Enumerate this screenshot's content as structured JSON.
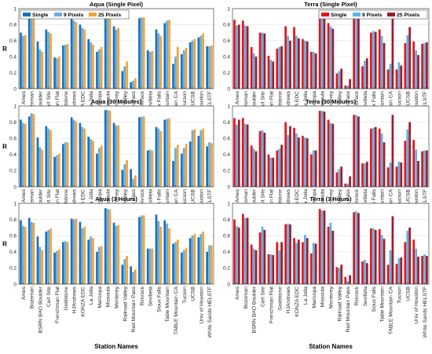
{
  "chart_data": [
    {
      "type": "bar",
      "title": "Aqua (Single Pixel)",
      "ylabel": "R",
      "xlabel": "",
      "ylim": [
        0,
        1
      ],
      "yticks": [
        0,
        0.2,
        0.4,
        0.6,
        0.8,
        1
      ],
      "grid": true,
      "legend": "top-left",
      "categories": [
        "Ames",
        "Bozeman",
        "BSRN BAO Boulder",
        "Cart Site",
        "Frenchman Flat",
        "Goldstone",
        "HJAndrews",
        "KONZA EDC",
        "La Jolla",
        "Maricopa",
        "Missoula",
        "Monterey",
        "Railroad Valley",
        "Red Mountain Pass",
        "Rimrock",
        "Sevilleta",
        "Sioux Falls",
        "Table Mountain",
        "TABLE Mountain CA",
        "Tucson",
        "UCSB",
        "Univ of Houston",
        "White Sands HELSTF"
      ],
      "series": [
        {
          "name": "Single",
          "color": "#1f6fba",
          "values": [
            0.7,
            0.91,
            0.59,
            0.74,
            0.39,
            0.54,
            0.9,
            0.8,
            0.62,
            0.46,
            0.94,
            0.78,
            0.22,
            0.08,
            0.88,
            0.48,
            0.74,
            0.82,
            0.31,
            0.43,
            0.58,
            0.64,
            0.53
          ]
        },
        {
          "name": "9 Pixels",
          "color": "#6baed6",
          "values": [
            0.66,
            0.88,
            0.49,
            0.71,
            0.38,
            0.55,
            0.85,
            0.76,
            0.58,
            0.49,
            0.94,
            0.74,
            0.28,
            0.1,
            0.89,
            0.46,
            0.69,
            0.85,
            0.4,
            0.48,
            0.6,
            0.66,
            0.53
          ]
        },
        {
          "name": "25 Pixels",
          "color": "#f2a33a",
          "values": [
            0.67,
            0.89,
            0.46,
            0.69,
            0.4,
            0.56,
            0.83,
            0.74,
            0.55,
            0.52,
            0.94,
            0.76,
            0.34,
            0.13,
            0.89,
            0.47,
            0.66,
            0.86,
            0.52,
            0.51,
            0.62,
            0.69,
            0.54
          ]
        }
      ]
    },
    {
      "type": "bar",
      "title": "Terra (Single Pixel)",
      "ylabel": "",
      "xlabel": "",
      "ylim": [
        0,
        1
      ],
      "yticks": [
        0,
        0.2,
        0.4,
        0.6,
        0.8,
        1
      ],
      "grid": true,
      "legend": "top-right",
      "categories": [
        "Ames",
        "Bozeman",
        "BSRN BAO Boulder",
        "Cart Site",
        "Frenchman Flat",
        "Goldstone",
        "HJAndrews",
        "KONZA EDC",
        "La Jolla",
        "Maricopa",
        "Missoula",
        "Monterey",
        "Railroad Valley",
        "Red Mountain Pass",
        "Rimrock",
        "Sevilleta",
        "Sioux Falls",
        "Table Mountain",
        "TABLE Mountain CA",
        "Tucson",
        "UCSB",
        "Univ of Houston",
        "White Sands HELSTF"
      ],
      "series": [
        {
          "name": "Single",
          "color": "#e8151b",
          "values": [
            0.86,
            0.85,
            0.52,
            0.7,
            0.41,
            0.5,
            0.78,
            0.77,
            0.62,
            0.46,
            0.93,
            0.82,
            0.19,
            0.04,
            0.9,
            0.28,
            0.7,
            0.74,
            0.24,
            0.24,
            0.57,
            0.59,
            0.56
          ]
        },
        {
          "name": "9 Pixels",
          "color": "#5ab4e5",
          "values": [
            0.79,
            0.79,
            0.44,
            0.7,
            0.36,
            0.52,
            0.66,
            0.66,
            0.6,
            0.46,
            0.94,
            0.78,
            0.22,
            0.04,
            0.9,
            0.35,
            0.72,
            0.66,
            0.31,
            0.33,
            0.67,
            0.48,
            0.57
          ]
        },
        {
          "name": "25 Pixels",
          "color": "#a31a2a",
          "values": [
            0.8,
            0.78,
            0.4,
            0.69,
            0.34,
            0.53,
            0.6,
            0.63,
            0.59,
            0.44,
            0.93,
            0.75,
            0.25,
            0.12,
            0.89,
            0.38,
            0.71,
            0.57,
            0.9,
            0.29,
            0.77,
            0.42,
            0.58
          ]
        }
      ]
    },
    {
      "type": "bar",
      "title": "Aqua (30 Minutes)",
      "ylabel": "R",
      "xlabel": "",
      "ylim": [
        0,
        1
      ],
      "yticks": [
        0,
        0.2,
        0.4,
        0.6,
        0.8,
        1
      ],
      "grid": true,
      "categories": [
        "Ames",
        "Bozeman",
        "BSRN BAO Boulder",
        "Cart Site",
        "Frenchman Flat",
        "Goldstone",
        "HJAndrews",
        "KONZA EDC",
        "La Jolla",
        "Maricopa",
        "Missoula",
        "Monterey",
        "Railroad Valley",
        "Red Mountain Pass",
        "Rimrock",
        "Sevilleta",
        "Sioux Falls",
        "Table Mountain",
        "TABLE Mountain CA",
        "Tucson",
        "UCSB",
        "Univ of Houston",
        "White Sands HELSTF"
      ],
      "series": [
        {
          "name": "Single",
          "color": "#1f6fba",
          "values": [
            0.83,
            0.87,
            0.61,
            0.75,
            0.37,
            0.53,
            0.86,
            0.79,
            0.62,
            0.41,
            0.95,
            0.79,
            0.21,
            0.22,
            0.86,
            0.45,
            0.74,
            0.83,
            0.32,
            0.41,
            0.56,
            0.63,
            0.5
          ]
        },
        {
          "name": "9 Pixels",
          "color": "#6baed6",
          "values": [
            0.79,
            0.91,
            0.49,
            0.72,
            0.39,
            0.55,
            0.83,
            0.74,
            0.59,
            0.48,
            0.95,
            0.76,
            0.28,
            0.1,
            0.87,
            0.46,
            0.72,
            0.84,
            0.48,
            0.48,
            0.7,
            0.7,
            0.55
          ]
        },
        {
          "name": "25 Pixels",
          "color": "#f2a33a",
          "values": [
            0.78,
            0.9,
            0.46,
            0.7,
            0.41,
            0.55,
            0.81,
            0.72,
            0.57,
            0.51,
            0.94,
            0.76,
            0.33,
            0.14,
            0.87,
            0.45,
            0.69,
            0.85,
            0.52,
            0.53,
            0.71,
            0.72,
            0.54
          ]
        }
      ]
    },
    {
      "type": "bar",
      "title": "Terra (30 Minutes)",
      "ylabel": "",
      "xlabel": "",
      "ylim": [
        0,
        1
      ],
      "yticks": [
        0,
        0.2,
        0.4,
        0.6,
        0.8,
        1
      ],
      "grid": true,
      "categories": [
        "Ames",
        "Bozeman",
        "BSRN BAO Boulder",
        "Cart Site",
        "Frenchman Flat",
        "Goldstone",
        "HJAndrews",
        "KONZA EDC",
        "La Jolla",
        "Maricopa",
        "Missoula",
        "Monterey",
        "Railroad Valley",
        "Red Mountain Pass",
        "Rimrock",
        "Sevilleta",
        "Sioux Falls",
        "Table Mountain",
        "TABLE Mountain CA",
        "Tucson",
        "UCSB",
        "Univ of Houston",
        "White Sands HELSTF"
      ],
      "series": [
        {
          "name": "Single",
          "color": "#e8151b",
          "values": [
            0.85,
            0.85,
            0.51,
            0.69,
            0.4,
            0.45,
            0.8,
            0.73,
            0.63,
            0.4,
            0.94,
            0.83,
            0.18,
            0.04,
            0.89,
            0.29,
            0.72,
            0.72,
            0.24,
            0.25,
            0.57,
            0.58,
            0.44
          ]
        },
        {
          "name": "9 Pixels",
          "color": "#5ab4e5",
          "values": [
            0.77,
            0.78,
            0.47,
            0.7,
            0.36,
            0.47,
            0.64,
            0.66,
            0.61,
            0.45,
            0.94,
            0.79,
            0.22,
            0.04,
            0.89,
            0.29,
            0.73,
            0.66,
            0.3,
            0.31,
            0.71,
            0.46,
            0.45
          ]
        },
        {
          "name": "25 Pixels",
          "color": "#a31a2a",
          "values": [
            0.83,
            0.77,
            0.44,
            0.67,
            0.36,
            0.52,
            0.75,
            0.61,
            0.6,
            0.45,
            0.93,
            0.78,
            0.25,
            0.13,
            0.87,
            0.31,
            0.74,
            0.55,
            0.89,
            0.3,
            0.8,
            0.32,
            0.45
          ]
        }
      ]
    },
    {
      "type": "bar",
      "title": "Aqua (3 Hours)",
      "ylabel": "R",
      "xlabel": "Station Names",
      "ylim": [
        0,
        1
      ],
      "yticks": [
        0,
        0.2,
        0.4,
        0.6,
        0.8,
        1
      ],
      "grid": true,
      "categories": [
        "Ames",
        "Bozeman",
        "BSRN BAO Boulder",
        "Cart Site",
        "Frenchman Flat",
        "Goldstone",
        "HJAndrews",
        "KONZA EDC",
        "La Jolla",
        "Maricopa",
        "Missoula",
        "Monterey",
        "Railroad Valley",
        "Red Mountain Pass",
        "Rimrock",
        "Sevilleta",
        "Sioux Falls",
        "Table Mountain",
        "TABLE Mountain CA",
        "Tucson",
        "UCSB",
        "Univ of Houston",
        "White Sands HELSTF"
      ],
      "series": [
        {
          "name": "Single",
          "color": "#1f6fba",
          "values": [
            0.79,
            0.82,
            0.59,
            0.65,
            0.39,
            0.52,
            0.81,
            0.77,
            0.55,
            0.4,
            0.94,
            0.76,
            0.24,
            0.22,
            0.83,
            0.44,
            0.86,
            0.79,
            0.5,
            0.39,
            0.57,
            0.58,
            0.4
          ]
        },
        {
          "name": "9 Pixels",
          "color": "#6baed6",
          "values": [
            0.72,
            0.77,
            0.46,
            0.67,
            0.41,
            0.53,
            0.8,
            0.69,
            0.59,
            0.46,
            0.93,
            0.72,
            0.31,
            0.15,
            0.85,
            0.44,
            0.78,
            0.75,
            0.52,
            0.42,
            0.6,
            0.62,
            0.48
          ]
        },
        {
          "name": "25 Pixels",
          "color": "#f2a33a",
          "values": [
            0.71,
            0.76,
            0.42,
            0.69,
            0.43,
            0.52,
            0.81,
            0.71,
            0.57,
            0.47,
            0.92,
            0.73,
            0.35,
            0.18,
            0.85,
            0.44,
            0.71,
            0.69,
            0.55,
            0.45,
            0.62,
            0.65,
            0.48
          ]
        }
      ]
    },
    {
      "type": "bar",
      "title": "Terra (3 Hours)",
      "ylabel": "",
      "xlabel": "Station Names",
      "ylim": [
        0,
        1
      ],
      "yticks": [
        0,
        0.2,
        0.4,
        0.6,
        0.8,
        1
      ],
      "grid": true,
      "categories": [
        "Ames",
        "Bozeman",
        "BSRN BAO Boulder",
        "Cart Site",
        "Frenchman Flat",
        "Goldstone",
        "HJAndrews",
        "KONZA EDC",
        "La Jolla",
        "Maricopa",
        "Missoula",
        "Monterey",
        "Railroad Valley",
        "Red Mountain Pass",
        "Rimrock",
        "Sevilleta",
        "Sioux Falls",
        "Table Mountain",
        "TABLE Mountain CA",
        "Tucson",
        "UCSB",
        "Univ of Houston",
        "White Sands HELSTF"
      ],
      "series": [
        {
          "name": "Single",
          "color": "#e8151b",
          "values": [
            0.8,
            0.87,
            0.49,
            0.64,
            0.37,
            0.52,
            0.74,
            0.57,
            0.52,
            0.38,
            0.93,
            0.71,
            0.21,
            0.09,
            0.89,
            0.28,
            0.69,
            0.68,
            0.24,
            0.25,
            0.52,
            0.55,
            0.35
          ]
        },
        {
          "name": "9 Pixels",
          "color": "#5ab4e5",
          "values": [
            0.72,
            0.82,
            0.44,
            0.71,
            0.37,
            0.42,
            0.75,
            0.51,
            0.61,
            0.51,
            0.91,
            0.76,
            0.2,
            0.04,
            0.9,
            0.3,
            0.69,
            0.61,
            0.42,
            0.32,
            0.66,
            0.44,
            0.37
          ]
        },
        {
          "name": "25 Pixels",
          "color": "#a31a2a",
          "values": [
            0.7,
            0.82,
            0.42,
            0.67,
            0.36,
            0.52,
            0.74,
            0.55,
            0.57,
            0.5,
            0.91,
            0.66,
            0.24,
            0.11,
            0.88,
            0.26,
            0.67,
            0.56,
            0.84,
            0.33,
            0.7,
            0.34,
            0.35
          ]
        }
      ]
    }
  ]
}
